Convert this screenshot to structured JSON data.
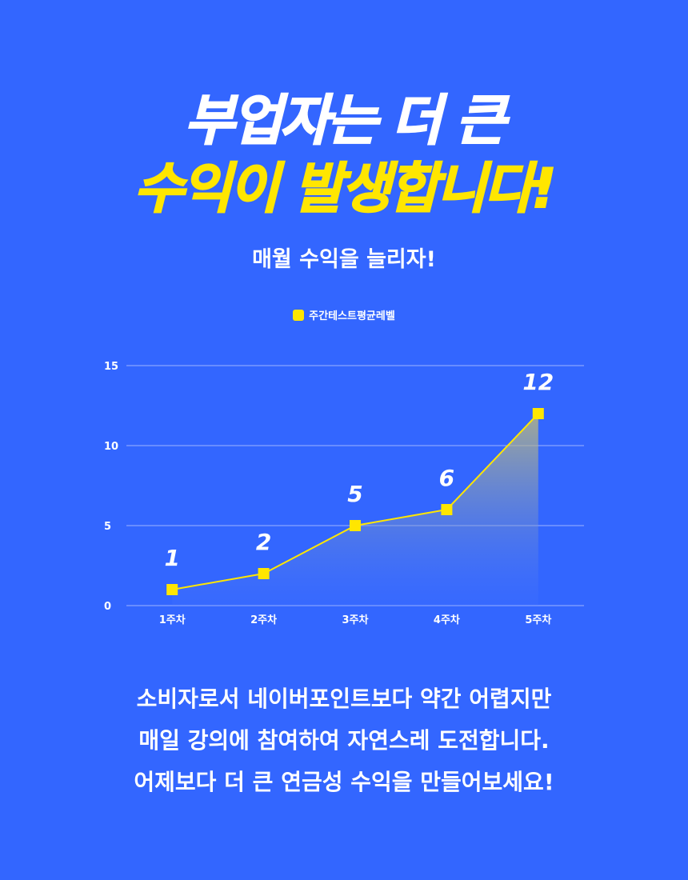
{
  "headline": {
    "line1": "부업자는 더 큰",
    "line2": "수익이 발생합니다!"
  },
  "subtitle": "매월 수익을 늘리자!",
  "colors": {
    "background": "#3366ff",
    "accent": "#ffe600",
    "text": "#ffffff"
  },
  "chart_data": {
    "type": "area",
    "categories": [
      "1주차",
      "2주차",
      "3주차",
      "4주차",
      "5주차"
    ],
    "series": [
      {
        "name": "주간테스트평균레벨",
        "values": [
          1,
          2,
          5,
          6,
          12
        ]
      }
    ],
    "ylim": [
      0,
      15
    ],
    "yticks": [
      0,
      5,
      10,
      15
    ],
    "data_labels": [
      "1",
      "2",
      "5",
      "6",
      "12"
    ],
    "grid": true,
    "legend": "top-center"
  },
  "body": {
    "lines": [
      "소비자로서 네이버포인트보다 약간 어렵지만",
      "매일 강의에 참여하여 자연스레 도전합니다.",
      "어제보다 더 큰 연금성 수익을 만들어보세요!"
    ]
  }
}
